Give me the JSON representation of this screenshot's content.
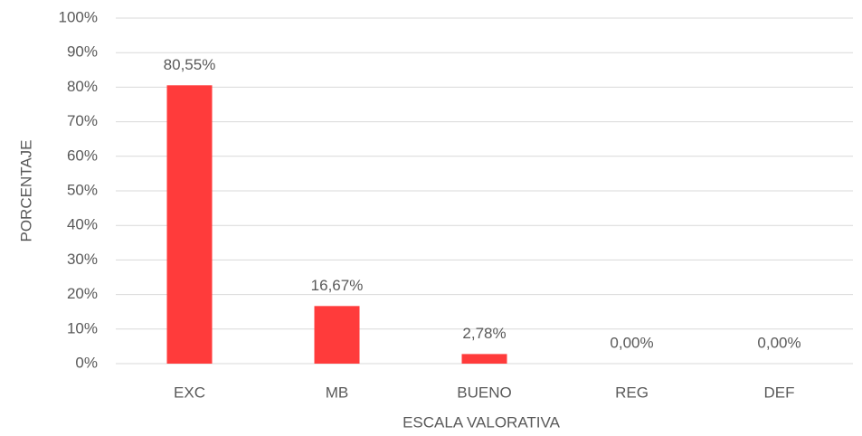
{
  "chart_data": {
    "type": "bar",
    "x_label": "ESCALA VALORATIVA",
    "y_label": "PORCENTAJE",
    "categories": [
      "EXC",
      "MB",
      "BUENO",
      "REG",
      "DEF"
    ],
    "values": [
      80.55,
      16.67,
      2.78,
      0,
      0
    ],
    "value_labels": [
      "80,55%",
      "16,67%",
      "2,78%",
      "0,00%",
      "0,00%"
    ],
    "color": "#ff3b3b",
    "ylim": [
      0,
      100
    ],
    "yticks": [
      {
        "value": 0,
        "label": "0%"
      },
      {
        "value": 10,
        "label": "10%"
      },
      {
        "value": 20,
        "label": "20%"
      },
      {
        "value": 30,
        "label": "30%"
      },
      {
        "value": 40,
        "label": "40%"
      },
      {
        "value": 50,
        "label": "50%"
      },
      {
        "value": 60,
        "label": "60%"
      },
      {
        "value": 70,
        "label": "70%"
      },
      {
        "value": 80,
        "label": "80%"
      },
      {
        "value": 90,
        "label": "90%"
      },
      {
        "value": 100,
        "label": "100%"
      }
    ],
    "grid": true
  }
}
